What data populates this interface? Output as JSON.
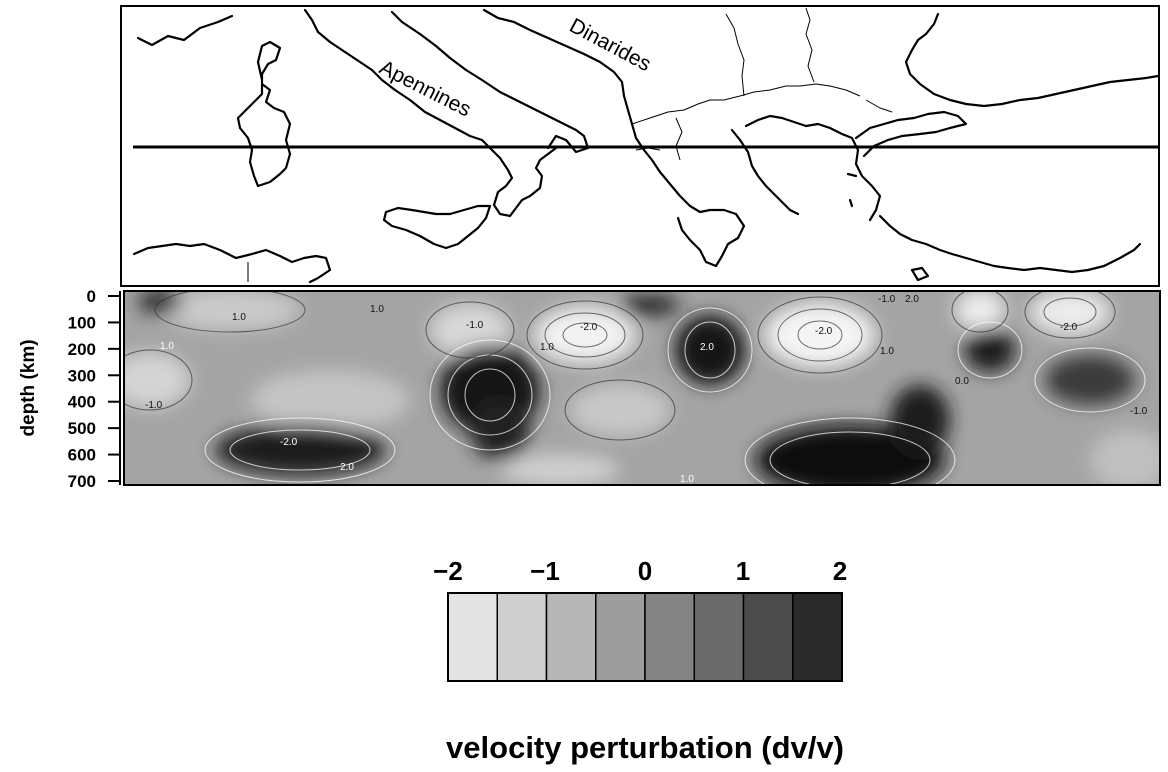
{
  "map": {
    "labels": [
      "Apennines",
      "Dinarides"
    ]
  },
  "section": {
    "ylabel": "depth (km)",
    "depth_ticks": [
      "0",
      "100",
      "200",
      "300",
      "400",
      "500",
      "600",
      "700"
    ],
    "contour_labels": [
      "1.0",
      "-1.0",
      "1.0",
      "-2.0",
      "1.0",
      "-2.0",
      "1.0",
      "-1.0",
      "-1.0",
      "-2.0",
      "2.0",
      "-2.0",
      "2.0",
      "0.0",
      "1.0",
      "-1.0",
      "2.0",
      "1.0"
    ]
  },
  "colorbar": {
    "tick_labels": [
      "−2",
      "−1",
      "0",
      "1",
      "2"
    ],
    "title": "velocity perturbation (dv/v)",
    "swatch_colors": [
      "#e4e4e4",
      "#cfcfcf",
      "#b6b6b6",
      "#9d9d9d",
      "#848484",
      "#6a6a6a",
      "#4c4c4c",
      "#2a2a2a"
    ]
  }
}
